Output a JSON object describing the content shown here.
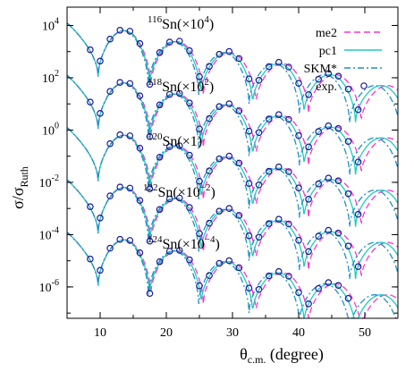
{
  "chart_data": {
    "type": "line",
    "xlabel": {
      "main": "θ",
      "sub": "c.m.",
      "rest": " (degree)"
    },
    "ylabel": {
      "main": "σ/σ",
      "sub": "Ruth"
    },
    "xlim": [
      5,
      55
    ],
    "ylog_exponent_range": [
      -7.2,
      4.7
    ],
    "y_scale": "log",
    "x_ticks": [
      {
        "v": 10,
        "label": "10"
      },
      {
        "v": 20,
        "label": "20"
      },
      {
        "v": 30,
        "label": "30"
      },
      {
        "v": 40,
        "label": "40"
      },
      {
        "v": 50,
        "label": "50"
      }
    ],
    "y_ticks": [
      {
        "e": 4,
        "base": "10",
        "exp": "4"
      },
      {
        "e": 2,
        "base": "10",
        "exp": "2"
      },
      {
        "e": 0,
        "base": "10",
        "exp": "0"
      },
      {
        "e": -2,
        "base": "10",
        "exp": "-2"
      },
      {
        "e": -4,
        "base": "10",
        "exp": "-4"
      },
      {
        "e": -6,
        "base": "10",
        "exp": "-6"
      }
    ],
    "legend": [
      {
        "name": "me2",
        "style": "dash",
        "color": "#ff33cc"
      },
      {
        "name": "pc1",
        "style": "solid",
        "color": "#22c9c0"
      },
      {
        "name": "SKM*",
        "style": "dashdot",
        "color": "#1e90c8"
      },
      {
        "name": "exp.",
        "style": "circle",
        "color": "#1a1a9a"
      }
    ],
    "legend_position": "top-right",
    "nuclei": [
      {
        "mass": "116",
        "el": "Sn",
        "factor_pre": "(×10",
        "factor_exp": "4",
        "factor_post": ")",
        "shift": 4
      },
      {
        "mass": "118",
        "el": "Sn",
        "factor_pre": "(×10",
        "factor_exp": "2",
        "factor_post": ")",
        "shift": 2
      },
      {
        "mass": "120",
        "el": "Sn",
        "factor_pre": "(×1)",
        "factor_exp": "",
        "factor_post": "",
        "shift": 0
      },
      {
        "mass": "122",
        "el": "Sn",
        "factor_pre": "(×10",
        "factor_exp": "−2",
        "factor_post": ")",
        "shift": -2
      },
      {
        "mass": "124",
        "el": "Sn",
        "factor_pre": "(×10",
        "factor_exp": "−4",
        "factor_post": ")",
        "shift": -4
      }
    ],
    "exp_angles": [
      8.5,
      10,
      11.5,
      13,
      14.5,
      16,
      17.5,
      19,
      20.5,
      22,
      23.5,
      25,
      26.5,
      28,
      29.5,
      31,
      32.5,
      34,
      35.5,
      37,
      38.5,
      40,
      41.5,
      43,
      44.5,
      46,
      47.5,
      49
    ]
  }
}
